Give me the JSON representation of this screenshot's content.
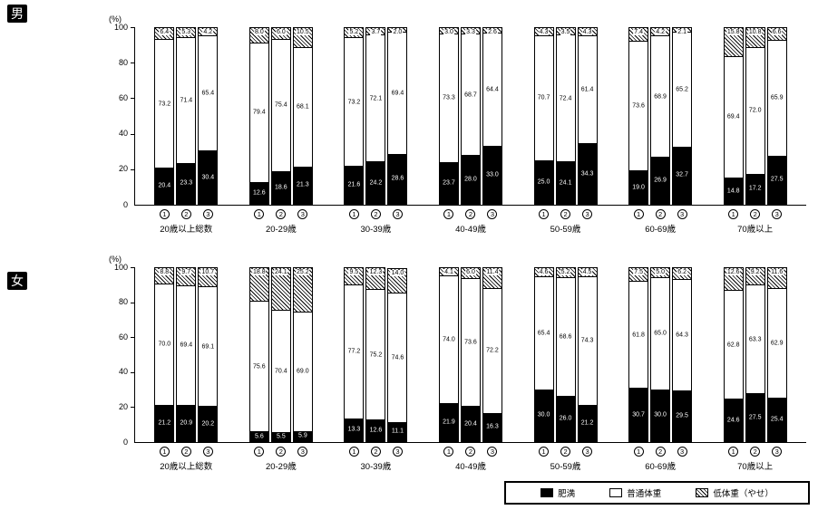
{
  "chart_data": [
    {
      "type": "bar",
      "stacked": true,
      "panel_label": "男",
      "ylabel": "(%)",
      "ylim": [
        0,
        100
      ],
      "yticks": [
        0,
        20,
        40,
        60,
        80,
        100
      ],
      "series_order": [
        "肥満",
        "普通体重",
        "低体重（やせ）"
      ],
      "groups": [
        {
          "label": "20歳以上総数",
          "bars": [
            {
              "n": "1",
              "obese": 20.4,
              "normal": 73.2,
              "under": 6.4
            },
            {
              "n": "2",
              "obese": 23.3,
              "normal": 71.4,
              "under": 5.3
            },
            {
              "n": "3",
              "obese": 30.4,
              "normal": 65.4,
              "under": 4.2
            }
          ]
        },
        {
          "label": "20-29歳",
          "bars": [
            {
              "n": "1",
              "obese": 12.6,
              "normal": 79.4,
              "under": 8.0
            },
            {
              "n": "2",
              "obese": 18.6,
              "normal": 75.4,
              "under": 6.0
            },
            {
              "n": "3",
              "obese": 21.3,
              "normal": 68.1,
              "under": 10.5
            }
          ]
        },
        {
          "label": "30-39歳",
          "bars": [
            {
              "n": "1",
              "obese": 21.6,
              "normal": 73.2,
              "under": 5.2
            },
            {
              "n": "2",
              "obese": 24.2,
              "normal": 72.1,
              "under": 3.7
            },
            {
              "n": "3",
              "obese": 28.6,
              "normal": 69.4,
              "under": 2.0
            }
          ]
        },
        {
          "label": "40-49歳",
          "bars": [
            {
              "n": "1",
              "obese": 23.7,
              "normal": 73.3,
              "under": 3.0
            },
            {
              "n": "2",
              "obese": 28.0,
              "normal": 68.7,
              "under": 3.3
            },
            {
              "n": "3",
              "obese": 33.0,
              "normal": 64.4,
              "under": 2.6
            }
          ]
        },
        {
          "label": "50-59歳",
          "bars": [
            {
              "n": "1",
              "obese": 25.0,
              "normal": 70.7,
              "under": 4.3
            },
            {
              "n": "2",
              "obese": 24.1,
              "normal": 72.4,
              "under": 3.5
            },
            {
              "n": "3",
              "obese": 34.3,
              "normal": 61.4,
              "under": 4.3
            }
          ]
        },
        {
          "label": "60-69歳",
          "bars": [
            {
              "n": "1",
              "obese": 19.0,
              "normal": 73.6,
              "under": 7.4
            },
            {
              "n": "2",
              "obese": 26.9,
              "normal": 68.9,
              "under": 4.2
            },
            {
              "n": "3",
              "obese": 32.7,
              "normal": 65.2,
              "under": 2.1
            }
          ]
        },
        {
          "label": "70歳以上",
          "bars": [
            {
              "n": "1",
              "obese": 14.8,
              "normal": 69.4,
              "under": 15.8
            },
            {
              "n": "2",
              "obese": 17.2,
              "normal": 72.0,
              "under": 10.8
            },
            {
              "n": "3",
              "obese": 27.5,
              "normal": 65.9,
              "under": 6.6
            }
          ]
        }
      ]
    },
    {
      "type": "bar",
      "stacked": true,
      "panel_label": "女",
      "ylabel": "(%)",
      "ylim": [
        0,
        100
      ],
      "yticks": [
        0,
        20,
        40,
        60,
        80,
        100
      ],
      "series_order": [
        "肥満",
        "普通体重",
        "低体重（やせ）"
      ],
      "groups": [
        {
          "label": "20歳以上総数",
          "bars": [
            {
              "n": "1",
              "obese": 21.2,
              "normal": 70.0,
              "under": 8.8
            },
            {
              "n": "2",
              "obese": 20.9,
              "normal": 69.4,
              "under": 9.7
            },
            {
              "n": "3",
              "obese": 20.2,
              "normal": 69.1,
              "under": 10.7
            }
          ]
        },
        {
          "label": "20-29歳",
          "bars": [
            {
              "n": "1",
              "obese": 5.6,
              "normal": 75.6,
              "under": 18.8
            },
            {
              "n": "2",
              "obese": 5.5,
              "normal": 70.4,
              "under": 24.1
            },
            {
              "n": "3",
              "obese": 5.9,
              "normal": 69.0,
              "under": 25.2
            }
          ]
        },
        {
          "label": "30-39歳",
          "bars": [
            {
              "n": "1",
              "obese": 13.3,
              "normal": 77.2,
              "under": 9.5
            },
            {
              "n": "2",
              "obese": 12.6,
              "normal": 75.2,
              "under": 12.3
            },
            {
              "n": "3",
              "obese": 11.1,
              "normal": 74.6,
              "under": 14.0
            }
          ]
        },
        {
          "label": "40-49歳",
          "bars": [
            {
              "n": "1",
              "obese": 21.9,
              "normal": 74.0,
              "under": 4.1
            },
            {
              "n": "2",
              "obese": 20.4,
              "normal": 73.6,
              "under": 6.0
            },
            {
              "n": "3",
              "obese": 16.3,
              "normal": 72.2,
              "under": 11.4
            }
          ]
        },
        {
          "label": "50-59歳",
          "bars": [
            {
              "n": "1",
              "obese": 30.0,
              "normal": 65.4,
              "under": 4.6
            },
            {
              "n": "2",
              "obese": 26.0,
              "normal": 68.6,
              "under": 5.2
            },
            {
              "n": "3",
              "obese": 21.2,
              "normal": 74.3,
              "under": 4.5
            }
          ]
        },
        {
          "label": "60-69歳",
          "bars": [
            {
              "n": "1",
              "obese": 30.7,
              "normal": 61.8,
              "under": 7.5
            },
            {
              "n": "2",
              "obese": 30.0,
              "normal": 65.0,
              "under": 5.0
            },
            {
              "n": "3",
              "obese": 29.5,
              "normal": 64.3,
              "under": 6.2
            }
          ]
        },
        {
          "label": "70歳以上",
          "bars": [
            {
              "n": "1",
              "obese": 24.6,
              "normal": 62.8,
              "under": 12.6
            },
            {
              "n": "2",
              "obese": 27.5,
              "normal": 63.3,
              "under": 9.2
            },
            {
              "n": "3",
              "obese": 25.4,
              "normal": 62.9,
              "under": 11.6
            }
          ]
        }
      ]
    }
  ],
  "legend": {
    "items": [
      {
        "label": "肥満",
        "style": "obese"
      },
      {
        "label": "普通体重",
        "style": "normal"
      },
      {
        "label": "低体重（やせ）",
        "style": "under"
      }
    ]
  }
}
